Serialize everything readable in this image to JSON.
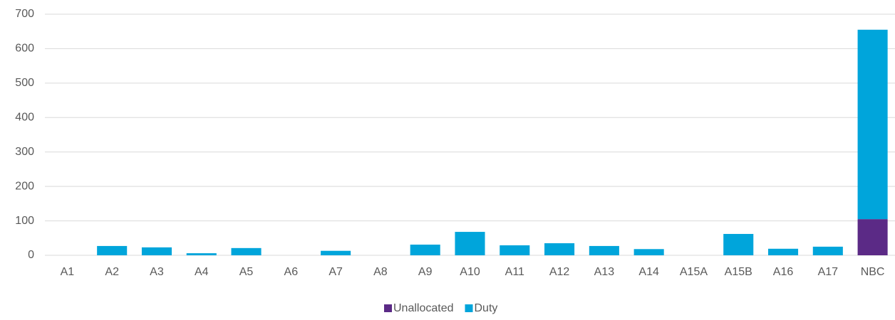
{
  "chart_data": {
    "type": "stacked_bar",
    "categories": [
      "A1",
      "A2",
      "A3",
      "A4",
      "A5",
      "A6",
      "A7",
      "A8",
      "A9",
      "A10",
      "A11",
      "A12",
      "A13",
      "A14",
      "A15A",
      "A15B",
      "A16",
      "A17",
      "NBC"
    ],
    "series": [
      {
        "name": "Unallocated",
        "color": "#5b2a86",
        "values": [
          0,
          0,
          0,
          0,
          0,
          0,
          0,
          0,
          0,
          0,
          0,
          0,
          0,
          0,
          0,
          0,
          0,
          0,
          105
        ]
      },
      {
        "name": "Duty",
        "color": "#00a5db",
        "values": [
          0,
          27,
          23,
          6,
          21,
          0,
          13,
          0,
          31,
          68,
          29,
          35,
          27,
          18,
          0,
          62,
          19,
          25,
          550
        ]
      }
    ],
    "ylim": [
      0,
      700
    ],
    "yticks": [
      0,
      100,
      200,
      300,
      400,
      500,
      600,
      700
    ],
    "grid": true,
    "legend": "bottom"
  }
}
